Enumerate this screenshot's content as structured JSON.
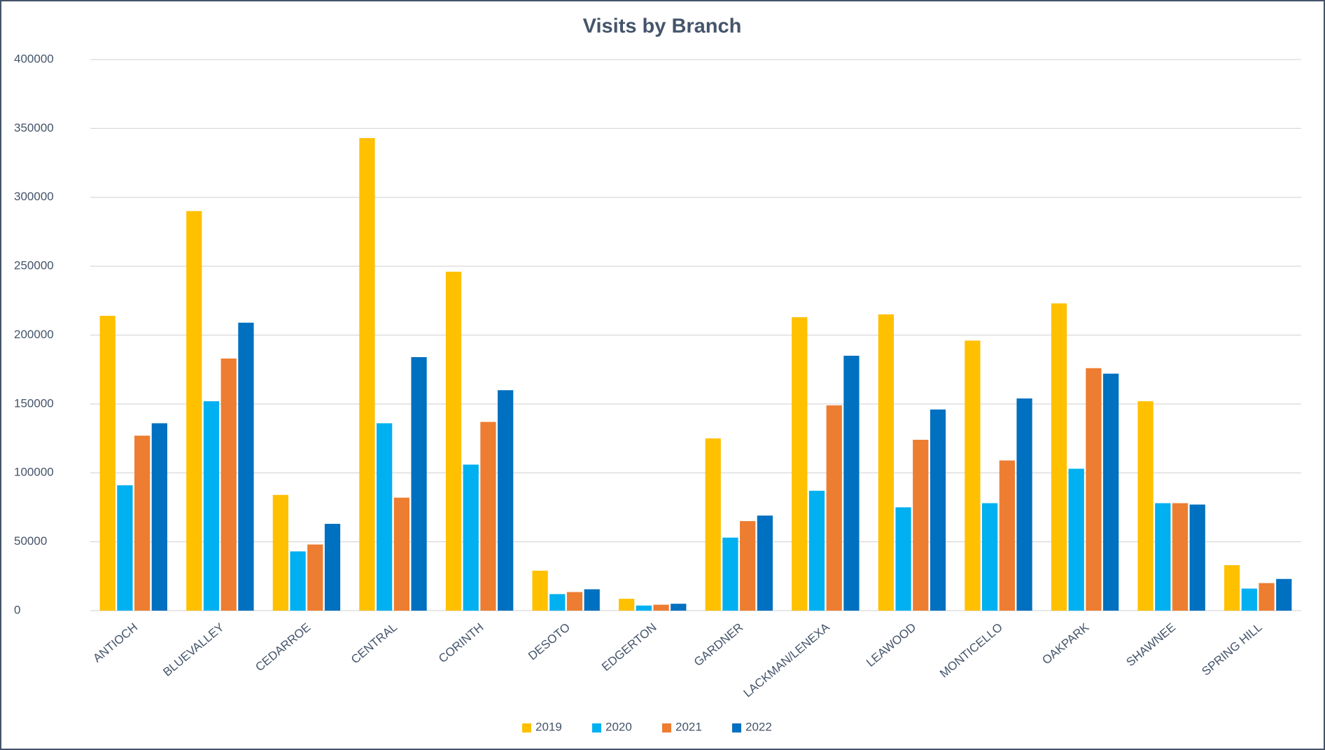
{
  "chart_data": {
    "type": "bar",
    "title": "Visits by Branch",
    "categories": [
      "ANTIOCH",
      "BLUEVALLEY",
      "CEDARROE",
      "CENTRAL",
      "CORINTH",
      "DESOTO",
      "EDGERTON",
      "GARDNER",
      "LACKMAN/LENEXA",
      "LEAWOOD",
      "MONTICELLO",
      "OAKPARK",
      "SHAWNEE",
      "SPRING HILL"
    ],
    "series": [
      {
        "name": "2019",
        "color": "#FFC000",
        "values": [
          214000,
          290000,
          84000,
          343000,
          246000,
          29000,
          8600,
          125000,
          213000,
          215000,
          196000,
          223000,
          152000,
          33000
        ]
      },
      {
        "name": "2020",
        "color": "#00B0F0",
        "values": [
          91000,
          152000,
          43000,
          136000,
          106000,
          12000,
          3700,
          53000,
          87000,
          75000,
          78000,
          103000,
          78000,
          16000
        ]
      },
      {
        "name": "2021",
        "color": "#ED7D31",
        "values": [
          127000,
          183000,
          48000,
          82000,
          137000,
          13500,
          4300,
          65000,
          149000,
          124000,
          109000,
          176000,
          78000,
          20000
        ]
      },
      {
        "name": "2022",
        "color": "#0070C0",
        "values": [
          136000,
          209000,
          63000,
          184000,
          160000,
          15500,
          5000,
          69000,
          185000,
          146000,
          154000,
          172000,
          77000,
          23000
        ]
      }
    ],
    "ylim": [
      0,
      400000
    ],
    "yticks": [
      0,
      50000,
      100000,
      150000,
      200000,
      250000,
      300000,
      350000,
      400000
    ],
    "grid": true,
    "legend": "bottom"
  }
}
